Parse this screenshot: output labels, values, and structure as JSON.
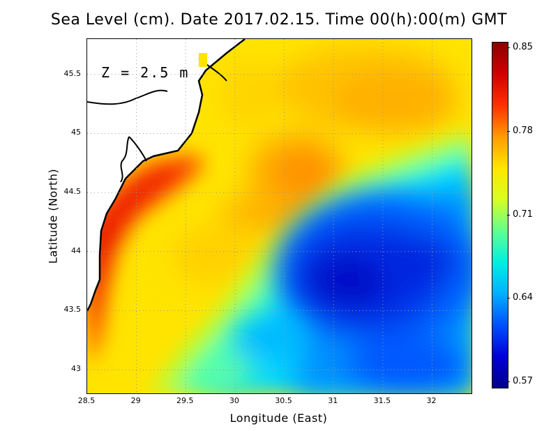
{
  "title": "Sea Level (cm). Date 2017.02.15. Time 00(h):00(m) GMT",
  "depth_label": "Z = 2.5 m",
  "x_axis": {
    "label": "Longitude (East)",
    "range": [
      28.5,
      32.4
    ],
    "ticks": [
      "28.5",
      "29",
      "29.5",
      "30",
      "30.5",
      "31",
      "31.5",
      "32"
    ],
    "tick_values": [
      28.5,
      29,
      29.5,
      30,
      30.5,
      31,
      31.5,
      32
    ]
  },
  "y_axis": {
    "label": "Latitude (North)",
    "range": [
      42.8,
      45.8
    ],
    "ticks": [
      "43",
      "43.5",
      "44",
      "44.5",
      "45",
      "45.5"
    ],
    "tick_values": [
      43,
      43.5,
      44,
      44.5,
      45,
      45.5
    ]
  },
  "colorbar": {
    "ticks": [
      "0.85",
      "0.78",
      "0.71",
      "0.64",
      "0.57"
    ],
    "min": 0.57,
    "max": 0.85,
    "colors": [
      "#00008c",
      "#0000d8",
      "#0050ff",
      "#00b0ff",
      "#00f0e0",
      "#60ff90",
      "#d8ff20",
      "#ffe600",
      "#ff9a00",
      "#ff3000",
      "#d00000",
      "#8c0000"
    ]
  },
  "grid": true
}
